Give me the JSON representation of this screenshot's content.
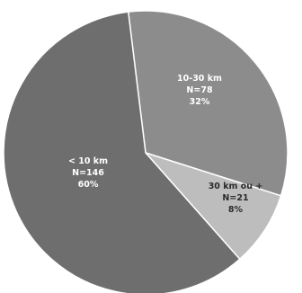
{
  "chart_data": {
    "type": "pie",
    "title": "",
    "slices": [
      {
        "label": "10-30 km",
        "n_text": "N=78",
        "pct_text": "32%",
        "value": 78,
        "color": "#8c8c8c",
        "text_color": "#ffffff"
      },
      {
        "label": "30 km ou +",
        "n_text": "N=21",
        "pct_text": "8%",
        "value": 21,
        "color": "#bdbdbd",
        "text_color": "#2b2b2b"
      },
      {
        "label": "< 10 km",
        "n_text": "N=146",
        "pct_text": "60%",
        "value": 146,
        "color": "#6e6e6e",
        "text_color": "#ffffff"
      }
    ]
  }
}
